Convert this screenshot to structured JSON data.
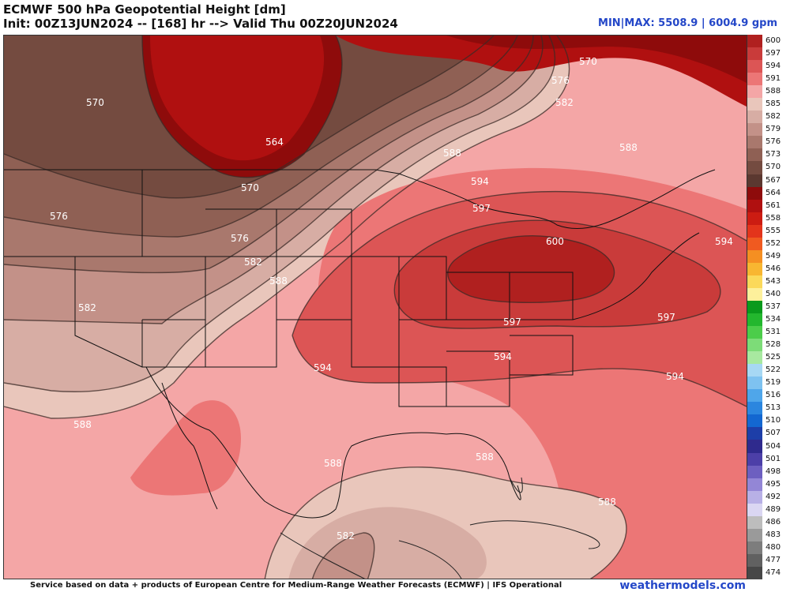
{
  "header": {
    "title": "ECMWF 500 hPa Geopotential Height [dm]",
    "subtitle": "Init: 00Z13JUN2024 -- [168] hr --> Valid Thu 00Z20JUN2024",
    "minmax": "MIN|MAX: 5508.9 | 6004.9 gpm"
  },
  "footer": {
    "credit": "Service based on data + products of European Centre for Medium-Range Weather Forecasts (ECMWF) | IFS Operational",
    "brand": "weathermodels.com"
  },
  "colorbar": {
    "ticks": [
      "600",
      "597",
      "594",
      "591",
      "588",
      "585",
      "582",
      "579",
      "576",
      "573",
      "570",
      "567",
      "564",
      "561",
      "558",
      "555",
      "552",
      "549",
      "546",
      "543",
      "540",
      "537",
      "534",
      "531",
      "528",
      "525",
      "522",
      "519",
      "516",
      "513",
      "510",
      "507",
      "504",
      "501",
      "498",
      "495",
      "492",
      "489",
      "486",
      "483",
      "480",
      "477",
      "474"
    ],
    "colors": [
      "#b0201f",
      "#c93b3a",
      "#dc5555",
      "#ec7676",
      "#f4a6a6",
      "#e9c6bb",
      "#d7ada4",
      "#c39188",
      "#a9786d",
      "#8f6054",
      "#744b40",
      "#5b3830",
      "#8e0b0b",
      "#b01010",
      "#cc1c12",
      "#e3341b",
      "#f05a20",
      "#f58f22",
      "#f8b631",
      "#fbd95a",
      "#fdf09b",
      "#0a9a1c",
      "#23b72e",
      "#4ccd4a",
      "#7ddc78",
      "#a8e9a0",
      "#a7d8f4",
      "#7ec2f0",
      "#4fa6ea",
      "#2b86df",
      "#1367d1",
      "#1d3ea8",
      "#2f2a8d",
      "#4c3fa8",
      "#6d5fc0",
      "#9386d6",
      "#b8b0e6",
      "#dad6f2",
      "#bdbdbd",
      "#9a9a9a",
      "#7d7d7d",
      "#616161",
      "#474747"
    ]
  },
  "map": {
    "contour_labels": [
      {
        "text": "570"
      },
      {
        "text": "570"
      },
      {
        "text": "570"
      },
      {
        "text": "564"
      },
      {
        "text": "576"
      },
      {
        "text": "576"
      },
      {
        "text": "576"
      },
      {
        "text": "582"
      },
      {
        "text": "582"
      },
      {
        "text": "582"
      },
      {
        "text": "588"
      },
      {
        "text": "588"
      },
      {
        "text": "588"
      },
      {
        "text": "588"
      },
      {
        "text": "588"
      },
      {
        "text": "588"
      },
      {
        "text": "588"
      },
      {
        "text": "594"
      },
      {
        "text": "594"
      },
      {
        "text": "594"
      },
      {
        "text": "594"
      },
      {
        "text": "594"
      },
      {
        "text": "597"
      },
      {
        "text": "597"
      },
      {
        "text": "597"
      },
      {
        "text": "600"
      },
      {
        "text": "582"
      }
    ]
  }
}
